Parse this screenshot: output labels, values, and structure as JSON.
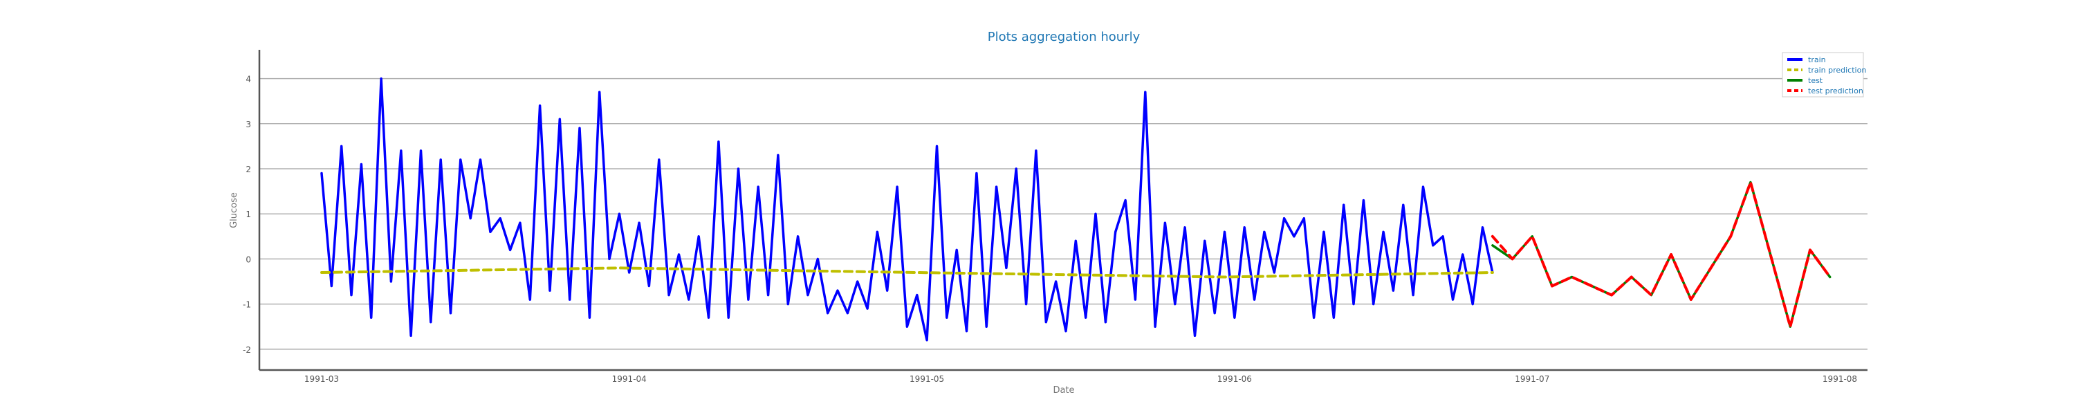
{
  "chart_data": {
    "type": "line",
    "title": "Plots aggregation hourly",
    "xlabel": "Date",
    "ylabel": "Glucose",
    "x_ticks": [
      "1991-03",
      "1991-04",
      "1991-05",
      "1991-06",
      "1991-07",
      "1991-08"
    ],
    "y_ticks": [
      4,
      3,
      2,
      1,
      0,
      -1,
      -2
    ],
    "xlim": [
      "1991-03-01",
      "1991-08-01"
    ],
    "ylim": [
      -2.2,
      4.3
    ],
    "grid": "horizontal",
    "legend_position": "top-right",
    "colors": {
      "title": "#1f77b4",
      "legend_text": "#1f77b4",
      "grid": "#b0b0b0",
      "axis": "#555555"
    },
    "series": [
      {
        "name": "train",
        "color": "#0000ff",
        "style": "solid",
        "x": [
          "1991-03-01",
          "1991-03-02",
          "1991-03-03",
          "1991-03-04",
          "1991-03-05",
          "1991-03-06",
          "1991-03-07",
          "1991-03-08",
          "1991-03-09",
          "1991-03-10",
          "1991-03-11",
          "1991-03-12",
          "1991-03-13",
          "1991-03-14",
          "1991-03-15",
          "1991-03-16",
          "1991-03-17",
          "1991-03-18",
          "1991-03-19",
          "1991-03-20",
          "1991-03-21",
          "1991-03-22",
          "1991-03-23",
          "1991-03-24",
          "1991-03-25",
          "1991-03-26",
          "1991-03-27",
          "1991-03-28",
          "1991-03-29",
          "1991-03-30",
          "1991-03-31",
          "1991-04-01",
          "1991-04-02",
          "1991-04-03",
          "1991-04-04",
          "1991-04-05",
          "1991-04-06",
          "1991-04-07",
          "1991-04-08",
          "1991-04-09",
          "1991-04-10",
          "1991-04-11",
          "1991-04-12",
          "1991-04-13",
          "1991-04-14",
          "1991-04-15",
          "1991-04-16",
          "1991-04-17",
          "1991-04-18",
          "1991-04-19",
          "1991-04-20",
          "1991-04-21",
          "1991-04-22",
          "1991-04-23",
          "1991-04-24",
          "1991-04-25",
          "1991-04-26",
          "1991-04-27",
          "1991-04-28",
          "1991-04-29",
          "1991-04-30",
          "1991-05-01",
          "1991-05-02",
          "1991-05-03",
          "1991-05-04",
          "1991-05-05",
          "1991-05-06",
          "1991-05-07",
          "1991-05-08",
          "1991-05-09",
          "1991-05-10",
          "1991-05-11",
          "1991-05-12",
          "1991-05-13",
          "1991-05-14",
          "1991-05-15",
          "1991-05-16",
          "1991-05-17",
          "1991-05-18",
          "1991-05-19",
          "1991-05-20",
          "1991-05-21",
          "1991-05-22",
          "1991-05-23",
          "1991-05-24",
          "1991-05-25",
          "1991-05-26",
          "1991-05-27",
          "1991-05-28",
          "1991-05-29",
          "1991-05-30",
          "1991-05-31",
          "1991-06-01",
          "1991-06-02",
          "1991-06-03",
          "1991-06-04",
          "1991-06-05",
          "1991-06-06",
          "1991-06-07",
          "1991-06-08",
          "1991-06-09",
          "1991-06-10",
          "1991-06-11",
          "1991-06-12",
          "1991-06-13",
          "1991-06-14",
          "1991-06-15",
          "1991-06-16",
          "1991-06-17",
          "1991-06-18",
          "1991-06-19",
          "1991-06-20",
          "1991-06-21",
          "1991-06-22",
          "1991-06-23",
          "1991-06-24",
          "1991-06-25",
          "1991-06-26",
          "1991-06-27"
        ],
        "values": [
          1.9,
          -0.6,
          2.5,
          -0.8,
          2.1,
          -1.3,
          4.0,
          -0.5,
          2.4,
          -1.7,
          2.4,
          -1.4,
          2.2,
          -1.2,
          2.2,
          0.9,
          2.2,
          0.6,
          0.9,
          0.2,
          0.8,
          -0.9,
          3.4,
          -0.7,
          3.1,
          -0.9,
          2.9,
          -1.3,
          3.7,
          0.0,
          1.0,
          -0.3,
          0.8,
          -0.6,
          2.2,
          -0.8,
          0.1,
          -0.9,
          0.5,
          -1.3,
          2.6,
          -1.3,
          2.0,
          -0.9,
          1.6,
          -0.8,
          2.3,
          -1.0,
          0.5,
          -0.8,
          0.0,
          -1.2,
          -0.7,
          -1.2,
          -0.5,
          -1.1,
          0.6,
          -0.7,
          1.6,
          -1.5,
          -0.8,
          -1.8,
          2.5,
          -1.3,
          0.2,
          -1.6,
          1.9,
          -1.5,
          1.6,
          -0.2,
          2.0,
          -1.0,
          2.4,
          -1.4,
          -0.5,
          -1.6,
          0.4,
          -1.3,
          1.0,
          -1.4,
          0.6,
          1.3,
          -0.9,
          3.7,
          -1.5,
          0.8,
          -1.0,
          0.7,
          -1.7,
          0.4,
          -1.2,
          0.6,
          -1.3,
          0.7,
          -0.9,
          0.6,
          -0.3,
          0.9,
          0.5,
          0.9,
          -1.3,
          0.6,
          -1.3,
          1.2,
          -1.0,
          1.3,
          -1.0,
          0.6,
          -0.7,
          1.2,
          -0.8,
          1.6,
          0.3,
          0.5,
          -0.9,
          0.1,
          -1.0,
          0.7,
          -0.3
        ]
      },
      {
        "name": "train prediction",
        "color": "#bfbf00",
        "style": "dashed",
        "x": [
          "1991-03-01",
          "1991-03-31",
          "1991-04-30",
          "1991-05-31",
          "1991-06-27"
        ],
        "values": [
          -0.3,
          -0.2,
          -0.3,
          -0.4,
          -0.3
        ]
      },
      {
        "name": "test",
        "color": "#008000",
        "style": "solid",
        "x": [
          "1991-06-27",
          "1991-06-29",
          "1991-07-01",
          "1991-07-03",
          "1991-07-05",
          "1991-07-07",
          "1991-07-09",
          "1991-07-11",
          "1991-07-13",
          "1991-07-15",
          "1991-07-17",
          "1991-07-19",
          "1991-07-21",
          "1991-07-23",
          "1991-07-25",
          "1991-07-27",
          "1991-07-29",
          "1991-07-31"
        ],
        "values": [
          0.3,
          0.0,
          0.5,
          -0.6,
          -0.4,
          -0.6,
          -0.8,
          -0.4,
          -0.8,
          0.1,
          -0.9,
          -0.2,
          0.5,
          1.7,
          0.1,
          -1.5,
          0.2,
          -0.4
        ]
      },
      {
        "name": "test prediction",
        "color": "#ff0000",
        "style": "dashed",
        "x": [
          "1991-06-27",
          "1991-06-29",
          "1991-07-01",
          "1991-07-03",
          "1991-07-05",
          "1991-07-07",
          "1991-07-09",
          "1991-07-11",
          "1991-07-13",
          "1991-07-15",
          "1991-07-17",
          "1991-07-19",
          "1991-07-21",
          "1991-07-23",
          "1991-07-25",
          "1991-07-27",
          "1991-07-29",
          "1991-07-31"
        ],
        "values": [
          0.5,
          0.0,
          0.5,
          -0.6,
          -0.4,
          -0.6,
          -0.8,
          -0.4,
          -0.8,
          0.1,
          -0.9,
          -0.2,
          0.5,
          1.7,
          0.1,
          -1.5,
          0.2,
          -0.4
        ]
      }
    ]
  }
}
